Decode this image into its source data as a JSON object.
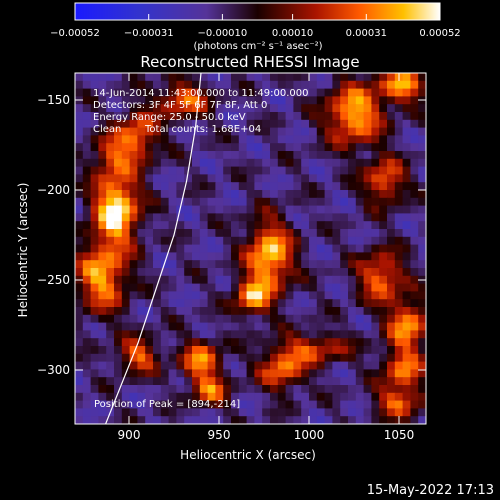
{
  "chart_data": {
    "type": "heatmap",
    "title": "Reconstructed RHESSI Image",
    "xlabel": "Heliocentric X (arcsec)",
    "ylabel": "Heliocentric Y (arcsec)",
    "xlim": [
      870,
      1065
    ],
    "ylim": [
      -330,
      -135
    ],
    "x_ticks": [
      900,
      950,
      1000,
      1050
    ],
    "y_ticks": [
      -150,
      -200,
      -250,
      -300
    ],
    "colorbar": {
      "ticks": [
        -0.00052,
        -0.00031,
        -0.0001,
        0.0001,
        0.00031,
        0.00052
      ],
      "tick_labels": [
        "-0.00052",
        "-0.00031",
        "-0.00010",
        "0.00010",
        "0.00031",
        "0.00052"
      ],
      "label": "(photons cm⁻² s⁻¹ asec⁻²)",
      "range": [
        -0.00052,
        0.00052
      ]
    },
    "annotations": [
      "14-Jun-2014 11:43:00.000 to 11:49:00.000",
      "Detectors: 3F 4F 5F 6F 7F 8F, Att 0",
      "Energy Range: 25.0 - 50.0 keV",
      "Clean",
      "Total counts: 1.68E+04",
      "Position of Peak = [894,-214]"
    ],
    "peak": {
      "x": 894,
      "y": -214
    },
    "limb_curve": [
      [
        887,
        -330
      ],
      [
        895,
        -310
      ],
      [
        905,
        -285
      ],
      [
        915,
        -255
      ],
      [
        925,
        -225
      ],
      [
        932,
        -195
      ],
      [
        937,
        -165
      ],
      [
        940,
        -135
      ]
    ],
    "sources": [
      {
        "x": 893,
        "y": -210,
        "value": 0.00052,
        "sx": 9,
        "sy": 14
      },
      {
        "x": 885,
        "y": -248,
        "value": 0.00038,
        "sx": 10,
        "sy": 14
      },
      {
        "x": 905,
        "y": -170,
        "value": 0.0003,
        "sx": 8,
        "sy": 10
      },
      {
        "x": 930,
        "y": -150,
        "value": 0.0003,
        "sx": 10,
        "sy": 7
      },
      {
        "x": 978,
        "y": -237,
        "value": 0.00046,
        "sx": 9,
        "sy": 14
      },
      {
        "x": 968,
        "y": -260,
        "value": 0.00033,
        "sx": 7,
        "sy": 7
      },
      {
        "x": 1025,
        "y": -158,
        "value": 0.00042,
        "sx": 11,
        "sy": 12
      },
      {
        "x": 1052,
        "y": -142,
        "value": 0.00036,
        "sx": 9,
        "sy": 7
      },
      {
        "x": 1042,
        "y": -195,
        "value": 0.0003,
        "sx": 8,
        "sy": 9
      },
      {
        "x": 1040,
        "y": -248,
        "value": 0.00032,
        "sx": 9,
        "sy": 10
      },
      {
        "x": 1055,
        "y": -275,
        "value": 0.00036,
        "sx": 8,
        "sy": 10
      },
      {
        "x": 1003,
        "y": -288,
        "value": 0.00022,
        "sx": 14,
        "sy": 6
      },
      {
        "x": 1052,
        "y": -300,
        "value": 0.0003,
        "sx": 8,
        "sy": 8
      },
      {
        "x": 985,
        "y": -300,
        "value": 0.0003,
        "sx": 9,
        "sy": 8
      },
      {
        "x": 940,
        "y": -295,
        "value": 0.00033,
        "sx": 8,
        "sy": 8
      },
      {
        "x": 905,
        "y": -292,
        "value": 0.00028,
        "sx": 8,
        "sy": 7
      },
      {
        "x": 945,
        "y": -312,
        "value": 0.00026,
        "sx": 7,
        "sy": 6
      },
      {
        "x": 1050,
        "y": -318,
        "value": 0.00028,
        "sx": 9,
        "sy": 6
      },
      {
        "x": 890,
        "y": -180,
        "value": 0.00018,
        "sx": 8,
        "sy": 8
      }
    ],
    "background_value": -0.00012
  },
  "footer": {
    "date": "15-May-2022 17:13"
  }
}
